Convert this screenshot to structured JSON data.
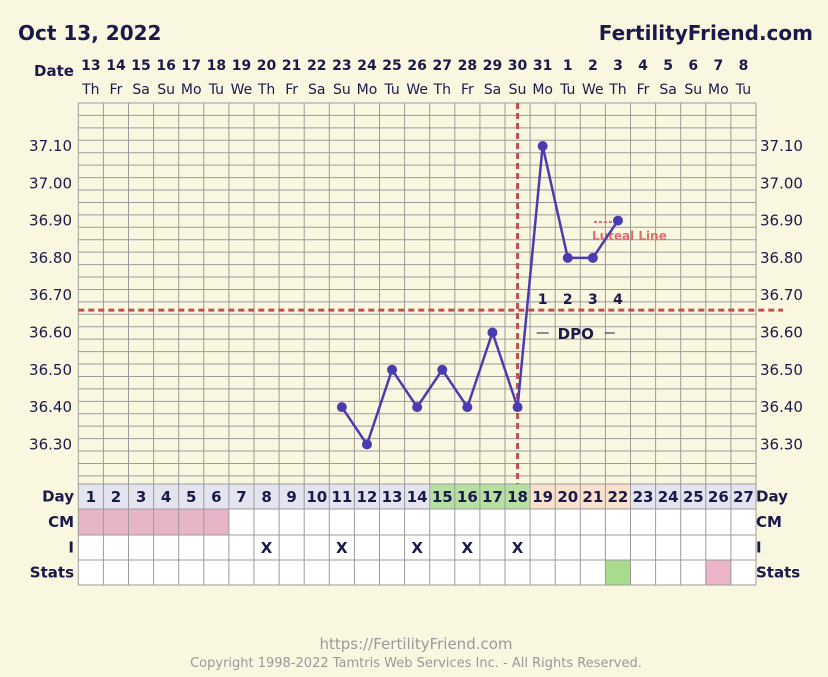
{
  "header": {
    "date": "Oct 13, 2022",
    "brand": "FertilityFriend.com"
  },
  "chart_data": {
    "type": "line",
    "title": "",
    "xlabel": "Date",
    "ylabel": "",
    "dates": [
      "13",
      "14",
      "15",
      "16",
      "17",
      "18",
      "19",
      "20",
      "21",
      "22",
      "23",
      "24",
      "25",
      "26",
      "27",
      "28",
      "29",
      "30",
      "31",
      "1",
      "2",
      "3",
      "4",
      "5",
      "6",
      "7",
      "8"
    ],
    "weekdays": [
      "Th",
      "Fr",
      "Sa",
      "Su",
      "Mo",
      "Tu",
      "We",
      "Th",
      "Fr",
      "Sa",
      "Su",
      "Mo",
      "Tu",
      "We",
      "Th",
      "Fr",
      "Sa",
      "Su",
      "Mo",
      "Tu",
      "We",
      "Th",
      "Fr",
      "Sa",
      "Su",
      "Mo",
      "Tu"
    ],
    "cycle_days": [
      1,
      2,
      3,
      4,
      5,
      6,
      7,
      8,
      9,
      10,
      11,
      12,
      13,
      14,
      15,
      16,
      17,
      18,
      19,
      20,
      21,
      22,
      23,
      24,
      25,
      26,
      27
    ],
    "ylim": [
      36.2,
      37.2
    ],
    "y_ticks": [
      "37.10",
      "37.00",
      "36.90",
      "36.80",
      "36.70",
      "36.60",
      "36.50",
      "36.40",
      "36.30"
    ],
    "series": [
      {
        "name": "",
        "x": [
          11,
          12,
          13,
          14,
          15,
          16,
          17,
          18,
          19,
          20,
          21,
          22
        ],
        "values": [
          36.4,
          36.3,
          36.5,
          36.4,
          36.5,
          36.4,
          36.6,
          36.4,
          37.1,
          36.8,
          36.8,
          36.9
        ]
      }
    ],
    "coverline": 36.66,
    "ovulation_day": 18,
    "dpo_labels": [
      "1",
      "2",
      "3",
      "4"
    ],
    "dpo_text": "DPO",
    "luteal_line_label": "Luteal Line",
    "luteal_line_day": 22,
    "row_labels": {
      "day": "Day",
      "cm": "CM",
      "i": "I",
      "stats": "Stats"
    },
    "cm_days": [
      1,
      2,
      3,
      4,
      5,
      6
    ],
    "intercourse_days": [
      8,
      11,
      14,
      16,
      18
    ],
    "intercourse_mark": "X",
    "fertile_days": [
      15,
      16,
      17,
      18
    ],
    "luteal_days": [
      19,
      20,
      21,
      22
    ],
    "stats_green_days": [
      22
    ],
    "stats_pink_days": [
      26
    ],
    "colors": {
      "line": "#4a3cb0",
      "coverline": "#c0504d",
      "luteal": "#e07070",
      "cm": "#e8b4c8",
      "fertile": "#b6e0a0",
      "luteal_fill": "#fbe0cc",
      "stats_green": "#a8dc8c",
      "stats_pink": "#ecb4c8"
    }
  },
  "footer": {
    "url": "https://FertilityFriend.com",
    "copyright": "Copyright 1998-2022 Tamtris Web Services Inc. - All Rights Reserved."
  }
}
